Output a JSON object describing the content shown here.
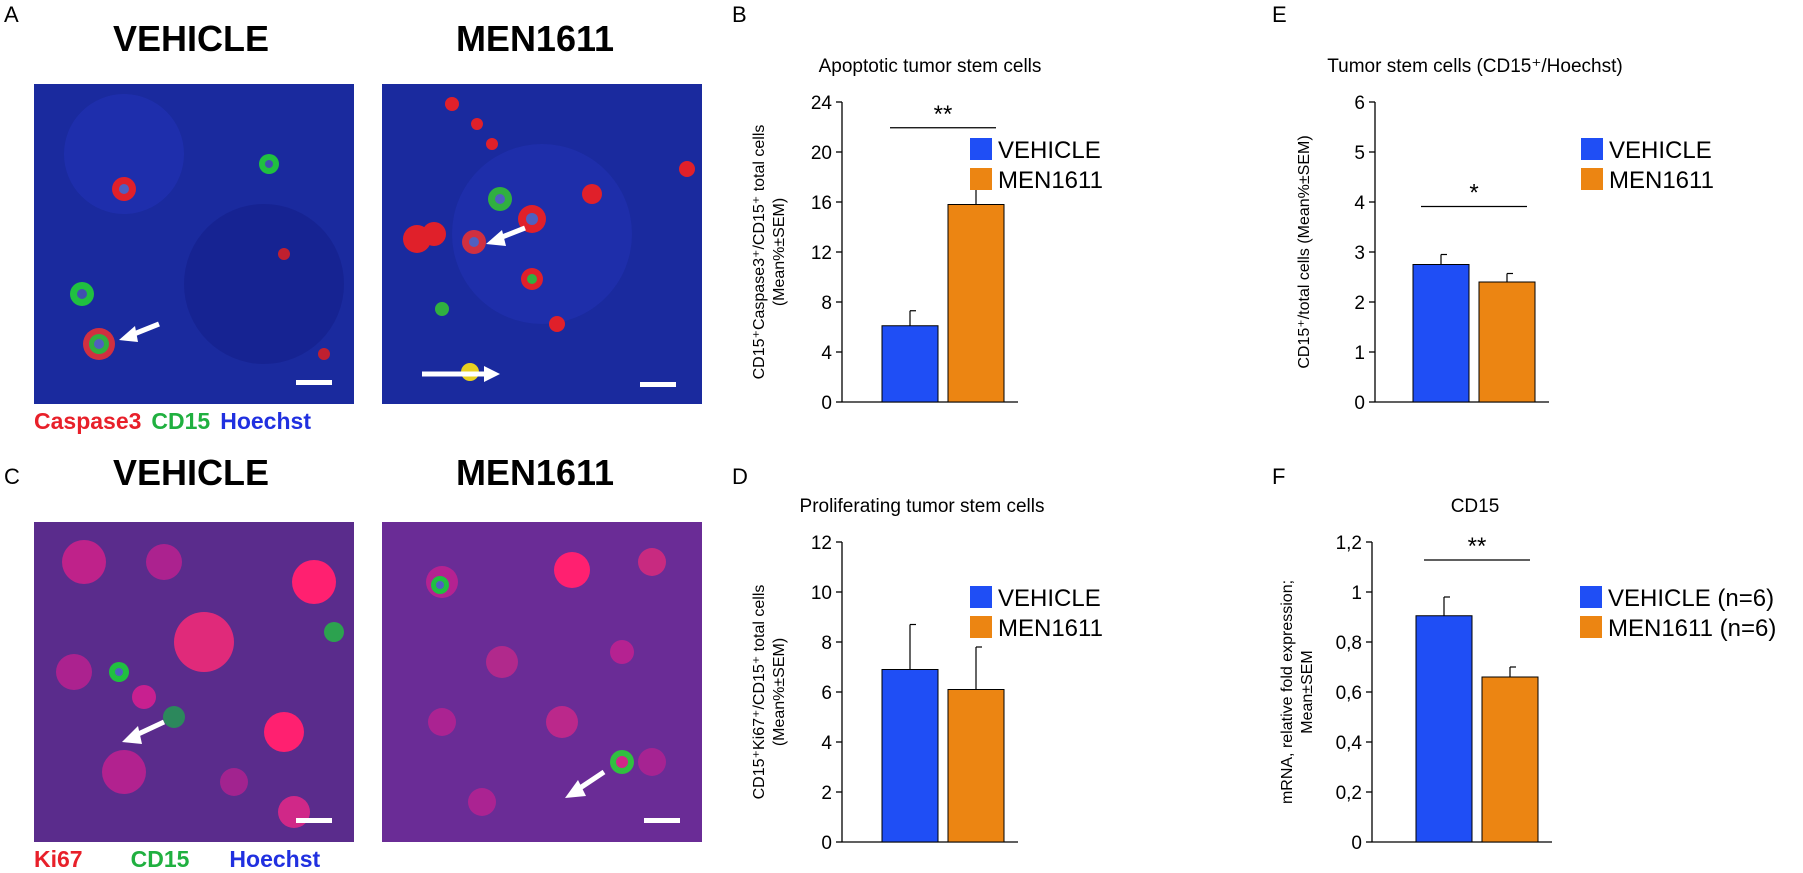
{
  "panels": {
    "A": {
      "letter": "A",
      "left_title": "VEHICLE",
      "right_title": "MEN1611",
      "stains": [
        "Caspase3",
        "CD15",
        "Hoechst"
      ]
    },
    "B": {
      "letter": "B"
    },
    "C": {
      "letter": "C",
      "left_title": "VEHICLE",
      "right_title": "MEN1611",
      "stains": [
        "Ki67",
        "CD15",
        "Hoechst"
      ]
    },
    "D": {
      "letter": "D"
    },
    "E": {
      "letter": "E"
    },
    "F": {
      "letter": "F"
    }
  },
  "colors": {
    "vehicle": "#1f4ef5",
    "men1611": "#ec8512"
  },
  "chart_data": [
    {
      "id": "B",
      "type": "bar",
      "title": "Apoptotic tumor stem cells",
      "ylabel_lines": [
        "CD15⁺Caspase3⁺/CD15⁺ total cells",
        "(Mean%±SEM)"
      ],
      "categories": [
        "VEHICLE",
        "MEN1611"
      ],
      "values": [
        6.1,
        15.8
      ],
      "errors": [
        1.2,
        2.3
      ],
      "ylim": [
        0,
        24
      ],
      "yticks": [
        "0",
        "4",
        "8",
        "12",
        "16",
        "20",
        "24"
      ],
      "significance": "**",
      "legend": [
        "VEHICLE",
        "MEN1611"
      ]
    },
    {
      "id": "E",
      "type": "bar",
      "title": "Tumor stem cells (CD15⁺/Hoechst)",
      "ylabel_lines": [
        "CD15⁺/total cells (Mean%±SEM)"
      ],
      "categories": [
        "VEHICLE",
        "MEN1611"
      ],
      "values": [
        2.75,
        2.4
      ],
      "errors": [
        0.2,
        0.17
      ],
      "ylim": [
        0,
        6
      ],
      "yticks": [
        "0",
        "1",
        "2",
        "3",
        "4",
        "5",
        "6"
      ],
      "significance": "*",
      "legend": [
        "VEHICLE",
        "MEN1611"
      ]
    },
    {
      "id": "D",
      "type": "bar",
      "title": "Proliferating tumor stem cells",
      "ylabel_lines": [
        "CD15⁺Ki67⁺/CD15⁺ total cells",
        "(Mean%±SEM)"
      ],
      "categories": [
        "VEHICLE",
        "MEN1611"
      ],
      "values": [
        6.9,
        6.1
      ],
      "errors": [
        1.8,
        1.7
      ],
      "ylim": [
        0,
        12
      ],
      "yticks": [
        "0",
        "2",
        "4",
        "6",
        "8",
        "10",
        "12"
      ],
      "significance": "",
      "legend": [
        "VEHICLE",
        "MEN1611"
      ]
    },
    {
      "id": "F",
      "type": "bar",
      "title": "CD15",
      "ylabel_lines": [
        "mRNA, relative fold expression;",
        "Mean±SEM"
      ],
      "categories": [
        "VEHICLE",
        "MEN1611"
      ],
      "values": [
        0.905,
        0.66
      ],
      "errors": [
        0.075,
        0.04
      ],
      "ylim": [
        0,
        1.2
      ],
      "yticks": [
        "0",
        "0,2",
        "0,4",
        "0,6",
        "0,8",
        "1",
        "1,2"
      ],
      "significance": "**",
      "legend": [
        "VEHICLE (n=6)",
        "MEN1611 (n=6)"
      ]
    }
  ]
}
